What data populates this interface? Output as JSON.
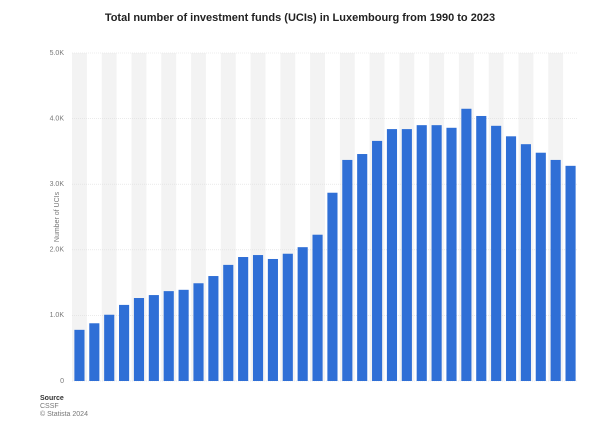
{
  "chart_data": {
    "type": "bar",
    "title": "Total number of investment funds (UCIs) in Luxembourg from 1990 to 2023",
    "y_label": "Number of UCIs",
    "categories": [
      null,
      null,
      null,
      null,
      null,
      null,
      null,
      null,
      null,
      null,
      null,
      null,
      null,
      null,
      null,
      null,
      null,
      null,
      null,
      null,
      null,
      null,
      null,
      null,
      null,
      null,
      null,
      null,
      null,
      null,
      null,
      null,
      null,
      null
    ],
    "values": [
      780,
      880,
      1010,
      1160,
      1265,
      1310,
      1370,
      1390,
      1490,
      1600,
      1770,
      1890,
      1920,
      1860,
      1940,
      2040,
      2230,
      2870,
      3370,
      3460,
      3660,
      3840,
      3840,
      3900,
      3900,
      3860,
      4150,
      4040,
      3890,
      3730,
      3610,
      3480,
      3370,
      3280
    ],
    "color": "#2f6fd6",
    "ylim": [
      0,
      5000
    ],
    "yticks": [
      0,
      {
        "value": 1000,
        "label": "1.0K"
      },
      {
        "value": 2000,
        "label": "2.0K"
      },
      {
        "value": 3000,
        "label": "3.0K"
      },
      {
        "value": 4000,
        "label": "4.0K"
      },
      {
        "value": 5000,
        "label": "5.0K"
      }
    ],
    "grid": true,
    "source_heading": "Source",
    "source": "CSSF",
    "copyright": "© Statista 2024"
  }
}
